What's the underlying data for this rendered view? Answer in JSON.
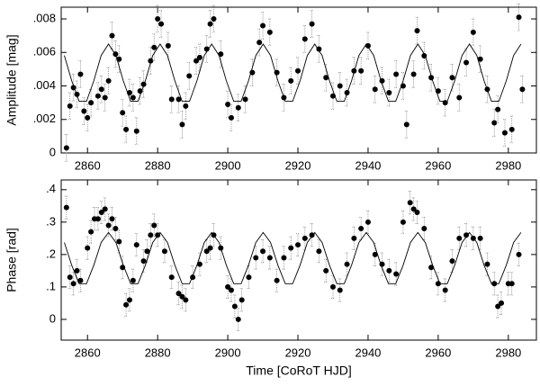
{
  "chart_data": [
    {
      "type": "scatter",
      "ylabel": "Amplitude [mag]",
      "xlim": [
        2852.5,
        2988
      ],
      "xticks": [
        2860,
        2880,
        2900,
        2920,
        2940,
        2960,
        2980
      ],
      "ylim": [
        0,
        0.0087
      ],
      "yticks": [
        0,
        {
          "value": 0.002,
          "label": ".002"
        },
        {
          "value": 0.004,
          "label": ".004"
        },
        {
          "value": 0.006,
          "label": ".006"
        },
        {
          "value": 0.008,
          "label": ".008"
        }
      ],
      "series": [
        {
          "kind": "points",
          "color": "#000000",
          "error": 0.0008,
          "x": [
            2854,
            2855,
            2856,
            2857,
            2858,
            2859,
            2860,
            2861,
            2863,
            2864,
            2865,
            2866,
            2867,
            2868,
            2869,
            2870,
            2871,
            2872,
            2873,
            2874,
            2875,
            2876,
            2878,
            2879,
            2880,
            2881,
            2883,
            2884,
            2886,
            2887,
            2888,
            2889,
            2891,
            2892,
            2894,
            2895,
            2896,
            2898,
            2900,
            2901,
            2903,
            2905,
            2907,
            2909,
            2910,
            2912,
            2914,
            2916,
            2918,
            2920,
            2922,
            2924,
            2926,
            2928,
            2930,
            2932,
            2934,
            2936,
            2938,
            2940,
            2942,
            2944,
            2946,
            2948,
            2950,
            2951,
            2953,
            2954,
            2956,
            2958,
            2960,
            2962,
            2964,
            2966,
            2968,
            2970,
            2972,
            2974,
            2976,
            2977,
            2979,
            2981,
            2983,
            2984
          ],
          "values": [
            0.0003,
            0.0028,
            0.0039,
            0.0035,
            0.0047,
            0.0025,
            0.0021,
            0.003,
            0.0034,
            0.0038,
            0.0033,
            0.0043,
            0.007,
            0.0059,
            0.0056,
            0.0024,
            0.0014,
            0.0036,
            0.0033,
            0.0013,
            0.0037,
            0.0041,
            0.0055,
            0.0063,
            0.008,
            0.0077,
            0.0064,
            0.0032,
            0.0032,
            0.0017,
            0.0028,
            0.0046,
            0.0055,
            0.0057,
            0.0062,
            0.0077,
            0.008,
            0.0059,
            0.0029,
            0.0021,
            0.0027,
            0.0032,
            0.0048,
            0.0066,
            0.0076,
            0.0072,
            0.0048,
            0.0033,
            0.0043,
            0.0049,
            0.0068,
            0.0077,
            0.0062,
            0.0045,
            0.0034,
            0.004,
            0.0036,
            0.0049,
            0.0049,
            0.0064,
            0.0038,
            0.0043,
            0.0036,
            0.0047,
            0.004,
            0.0017,
            0.0047,
            0.0073,
            0.0058,
            0.0045,
            0.0037,
            0.003,
            0.0045,
            0.0033,
            0.0054,
            0.0072,
            0.0056,
            0.0038,
            0.0018,
            0.0026,
            0.0012,
            0.0014,
            0.0081,
            0.0038
          ]
        },
        {
          "kind": "line",
          "color": "#000000",
          "x": [
            2853.4,
            2855.5,
            2857.6,
            2859.7,
            2861.8,
            2863.9,
            2866,
            2868.1,
            2870.2,
            2872.3,
            2874.4,
            2876.5,
            2878.6,
            2880.7,
            2882.8,
            2884.9,
            2887,
            2889.1,
            2891.2,
            2893.3,
            2895.4,
            2897.5,
            2899.6,
            2901.7,
            2903.8,
            2905.9,
            2908,
            2910.1,
            2912.2,
            2914.3,
            2916.4,
            2918.5,
            2920.6,
            2922.7,
            2924.8,
            2926.9,
            2929,
            2931.1,
            2933.2,
            2935.3,
            2937.4,
            2939.5,
            2941.6,
            2943.7,
            2945.8,
            2947.9,
            2950,
            2952.1,
            2954.2,
            2956.3,
            2958.4,
            2960.5,
            2962.6,
            2964.7,
            2966.8,
            2968.9,
            2971,
            2973.1,
            2975.2,
            2977.3,
            2979.4,
            2981.5,
            2983.6
          ],
          "values": [
            0.00582,
            0.0043,
            0.00308,
            0.00308,
            0.0043,
            0.00582,
            0.0065,
            0.00582,
            0.0043,
            0.00308,
            0.00308,
            0.0043,
            0.00582,
            0.0065,
            0.00582,
            0.0043,
            0.00308,
            0.00308,
            0.0043,
            0.00582,
            0.0065,
            0.00582,
            0.0043,
            0.00308,
            0.00308,
            0.0043,
            0.00582,
            0.0065,
            0.00582,
            0.0043,
            0.00308,
            0.00308,
            0.0043,
            0.00582,
            0.0065,
            0.00582,
            0.0043,
            0.00308,
            0.00308,
            0.0043,
            0.00582,
            0.0065,
            0.00582,
            0.0043,
            0.00308,
            0.00308,
            0.0043,
            0.00582,
            0.0065,
            0.00582,
            0.0043,
            0.00308,
            0.00308,
            0.0043,
            0.00582,
            0.0065,
            0.00582,
            0.0043,
            0.00308,
            0.00308,
            0.0043,
            0.00582,
            0.0065
          ]
        }
      ]
    },
    {
      "type": "scatter",
      "ylabel": "Phase [rad]",
      "xlabel": "Time [CoRoT HJD]",
      "xlim": [
        2852.5,
        2988
      ],
      "xticks": [
        2860,
        2880,
        2900,
        2920,
        2940,
        2960,
        2980
      ],
      "ylim": [
        -0.064,
        0.43
      ],
      "yticks": [
        0,
        {
          "value": 0.1,
          "label": ".1"
        },
        {
          "value": 0.2,
          "label": ".2"
        },
        {
          "value": 0.3,
          "label": ".3"
        },
        {
          "value": 0.4,
          "label": ".4"
        }
      ],
      "series": [
        {
          "kind": "points",
          "color": "#000000",
          "error": 0.035,
          "x": [
            2854,
            2855,
            2856,
            2857,
            2858,
            2860,
            2861,
            2862,
            2863,
            2864,
            2865,
            2866,
            2867,
            2868,
            2869,
            2870,
            2871,
            2872,
            2873,
            2874,
            2876,
            2877,
            2878,
            2879,
            2880,
            2882,
            2884,
            2886,
            2887,
            2888,
            2890,
            2892,
            2894,
            2895,
            2896,
            2898,
            2900,
            2901,
            2902,
            2903,
            2904,
            2906,
            2908,
            2910,
            2912,
            2914,
            2916,
            2918,
            2920,
            2922,
            2924,
            2926,
            2928,
            2930,
            2932,
            2934,
            2936,
            2938,
            2940,
            2942,
            2944,
            2946,
            2948,
            2950,
            2952,
            2953,
            2954,
            2956,
            2958,
            2960,
            2962,
            2964,
            2966,
            2968,
            2970,
            2972,
            2974,
            2976,
            2977,
            2978,
            2980,
            2981,
            2983
          ],
          "values": [
            0.345,
            0.13,
            0.11,
            0.15,
            0.12,
            0.22,
            0.27,
            0.31,
            0.31,
            0.33,
            0.34,
            0.29,
            0.31,
            0.28,
            0.24,
            0.16,
            0.045,
            0.06,
            0.12,
            0.23,
            0.18,
            0.21,
            0.26,
            0.29,
            0.26,
            0.21,
            0.13,
            0.08,
            0.07,
            0.06,
            0.13,
            0.17,
            0.21,
            0.22,
            0.26,
            0.22,
            0.1,
            0.09,
            0.04,
            0,
            0.06,
            0.13,
            0.19,
            0.21,
            0.19,
            0.12,
            0.19,
            0.22,
            0.23,
            0.25,
            0.26,
            0.21,
            0.15,
            0.1,
            0.09,
            0.17,
            0.25,
            0.28,
            0.3,
            0.2,
            0.17,
            0.15,
            0.14,
            0.3,
            0.36,
            0.34,
            0.33,
            0.28,
            0.16,
            0.11,
            0.09,
            0.18,
            0.25,
            0.26,
            0.25,
            0.25,
            0.17,
            0.11,
            0.04,
            0.05,
            0.11,
            0.11,
            0.2
          ]
        },
        {
          "kind": "line",
          "color": "#000000",
          "x": [
            2853.4,
            2855.5,
            2857.6,
            2859.7,
            2861.8,
            2863.9,
            2866,
            2868.1,
            2870.2,
            2872.3,
            2874.4,
            2876.5,
            2878.6,
            2880.7,
            2882.8,
            2884.9,
            2887,
            2889.1,
            2891.2,
            2893.3,
            2895.4,
            2897.5,
            2899.6,
            2901.7,
            2903.8,
            2905.9,
            2908,
            2910.1,
            2912.2,
            2914.3,
            2916.4,
            2918.5,
            2920.6,
            2922.7,
            2924.8,
            2926.9,
            2929,
            2931.1,
            2933.2,
            2935.3,
            2937.4,
            2939.5,
            2941.6,
            2943.7,
            2945.8,
            2947.9,
            2950,
            2952.1,
            2954.2,
            2956.3,
            2958.4,
            2960.5,
            2962.6,
            2964.7,
            2966.8,
            2968.9,
            2971,
            2973.1,
            2975.2,
            2977.3,
            2979.4,
            2981.5,
            2983.6
          ],
          "values": [
            0.237,
            0.167,
            0.11,
            0.11,
            0.167,
            0.237,
            0.268,
            0.237,
            0.167,
            0.11,
            0.11,
            0.167,
            0.237,
            0.268,
            0.237,
            0.167,
            0.11,
            0.11,
            0.167,
            0.237,
            0.268,
            0.237,
            0.167,
            0.11,
            0.11,
            0.167,
            0.237,
            0.268,
            0.237,
            0.167,
            0.11,
            0.11,
            0.167,
            0.237,
            0.268,
            0.237,
            0.167,
            0.11,
            0.11,
            0.167,
            0.237,
            0.268,
            0.237,
            0.167,
            0.11,
            0.11,
            0.167,
            0.237,
            0.268,
            0.237,
            0.167,
            0.11,
            0.11,
            0.167,
            0.237,
            0.268,
            0.237,
            0.167,
            0.11,
            0.11,
            0.167,
            0.237,
            0.268
          ]
        }
      ]
    }
  ]
}
